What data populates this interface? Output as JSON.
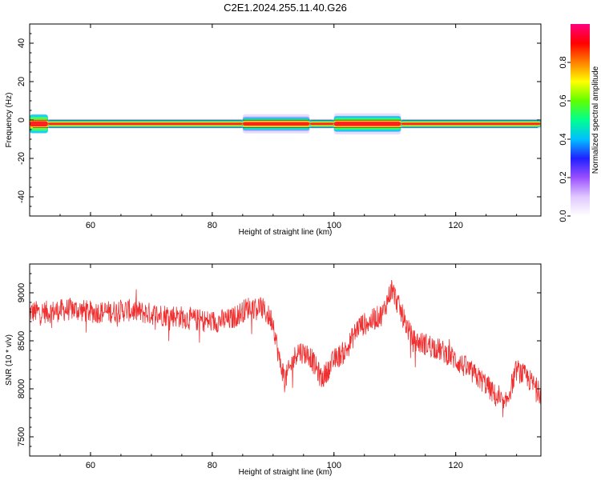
{
  "figure": {
    "title": "C2E1.2024.255.11.40.G26"
  },
  "chart_data": [
    {
      "type": "heatmap",
      "title": "C2E1.2024.255.11.40.G26",
      "xlabel": "Height of straight line (km)",
      "ylabel": "Frequency (Hz)",
      "xlim": [
        50,
        134
      ],
      "ylim": [
        -50,
        50
      ],
      "xticks": [
        60,
        80,
        100,
        120
      ],
      "yticks": [
        -40,
        -20,
        0,
        20,
        40
      ],
      "colorbar": {
        "label": "Normalized spectral amplitude",
        "range": [
          0,
          1
        ],
        "ticks": [
          "0.0",
          "0.2",
          "0.4",
          "0.6",
          "0.8"
        ],
        "colors": [
          "#ffffff",
          "#e0c8ff",
          "#9a50ff",
          "#2020ff",
          "#00c0ff",
          "#00ff90",
          "#60ff00",
          "#ffff00",
          "#ff8000",
          "#ff0000",
          "#ff0080"
        ]
      },
      "band": {
        "center_hz": -2,
        "segments": [
          {
            "x_start": 50,
            "x_end": 53,
            "core_width_hz": 3,
            "spread_hz": 5
          },
          {
            "x_start": 53,
            "x_end": 85,
            "core_width_hz": 1.2,
            "spread_hz": 2.5
          },
          {
            "x_start": 85,
            "x_end": 96,
            "core_width_hz": 2,
            "spread_hz": 5
          },
          {
            "x_start": 96,
            "x_end": 100,
            "core_width_hz": 1.2,
            "spread_hz": 2.5
          },
          {
            "x_start": 100,
            "x_end": 111,
            "core_width_hz": 2.5,
            "spread_hz": 5.5
          },
          {
            "x_start": 111,
            "x_end": 134,
            "core_width_hz": 1.2,
            "spread_hz": 2.5
          }
        ]
      }
    },
    {
      "type": "line",
      "xlabel": "Height of straight line (km)",
      "ylabel": "SNR (10 * v/v)",
      "xlim": [
        50,
        134
      ],
      "ylim": [
        7300,
        9300
      ],
      "xticks": [
        60,
        80,
        100,
        120
      ],
      "yticks": [
        7500,
        8000,
        8500,
        9000
      ],
      "series": [
        {
          "color": "#f03030",
          "x": [
            50,
            53,
            57,
            60,
            63,
            66,
            70,
            74,
            77,
            80,
            83,
            86,
            88,
            90,
            91,
            92,
            94,
            96,
            98,
            100,
            102,
            104,
            106,
            108,
            109.5,
            111,
            113,
            116,
            119,
            122,
            125,
            128,
            130,
            132,
            134
          ],
          "y": [
            8800,
            8800,
            8830,
            8800,
            8800,
            8820,
            8780,
            8760,
            8720,
            8700,
            8720,
            8850,
            8850,
            8700,
            8300,
            8100,
            8400,
            8350,
            8100,
            8300,
            8400,
            8650,
            8700,
            8780,
            9050,
            8800,
            8500,
            8450,
            8350,
            8200,
            8050,
            7800,
            8200,
            8100,
            7950
          ],
          "noise_amplitude": 120
        }
      ]
    }
  ]
}
